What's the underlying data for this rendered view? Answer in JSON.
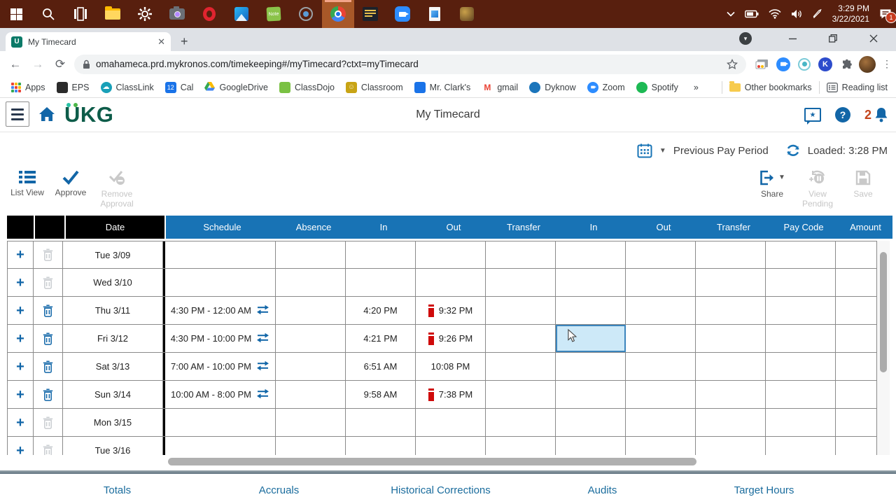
{
  "taskbar": {
    "time": "3:29 PM",
    "date": "3/22/2021",
    "badge": "1",
    "note_icon_label": "Note"
  },
  "browser": {
    "tab_title": "My Timecard",
    "favicon_letter": "U",
    "new_tab": "+",
    "close_tab": "✕",
    "url": "omahameca.prd.mykronos.com/timekeeping#/myTimecard?ctxt=myTimecard",
    "bookmarks": [
      {
        "label": "Apps",
        "icon": "apps-grid"
      },
      {
        "label": "EPS",
        "icon": "eps"
      },
      {
        "label": "ClassLink",
        "icon": "classlink"
      },
      {
        "label": "Cal",
        "icon": "cal",
        "glyph": "12"
      },
      {
        "label": "GoogleDrive",
        "icon": "gdrive"
      },
      {
        "label": "ClassDojo",
        "icon": "classdojo"
      },
      {
        "label": "Classroom",
        "icon": "classroom"
      },
      {
        "label": "Mr. Clark's",
        "icon": "mrclarks"
      },
      {
        "label": "gmail",
        "icon": "gmail",
        "glyph": "M"
      },
      {
        "label": "Dyknow",
        "icon": "dyknow"
      },
      {
        "label": "Zoom",
        "icon": "zoom"
      },
      {
        "label": "Spotify",
        "icon": "spotify"
      }
    ],
    "bookmarks_overflow": "»",
    "other_bookmarks": "Other bookmarks",
    "reading_list": "Reading list",
    "extension_k": "K"
  },
  "app": {
    "logo": "UKG",
    "title": "My Timecard",
    "help_glyph": "?",
    "notification_count": "2",
    "pay_period_label": "Previous Pay Period",
    "loaded_label": "Loaded: 3:28 PM",
    "toolbar": {
      "list_view": "List View",
      "approve": "Approve",
      "remove_approval": "Remove Approval",
      "share": "Share",
      "view_pending": "View Pending",
      "save": "Save"
    },
    "footer_tabs": [
      "Totals",
      "Accruals",
      "Historical Corrections",
      "Audits",
      "Target Hours"
    ]
  },
  "table": {
    "columns": [
      "Date",
      "Schedule",
      "Absence",
      "In",
      "Out",
      "Transfer",
      "In",
      "Out",
      "Transfer",
      "Pay Code",
      "Amount"
    ],
    "rows": [
      {
        "date": "Tue 3/09",
        "schedule": "",
        "absence": "",
        "in1": "",
        "out1": "",
        "out1_flag": false,
        "transfer1": "",
        "in2": "",
        "out2": "",
        "transfer2": "",
        "pay_code": "",
        "amount": "",
        "can_delete": false,
        "selected_cell": null
      },
      {
        "date": "Wed 3/10",
        "schedule": "",
        "absence": "",
        "in1": "",
        "out1": "",
        "out1_flag": false,
        "transfer1": "",
        "in2": "",
        "out2": "",
        "transfer2": "",
        "pay_code": "",
        "amount": "",
        "can_delete": false,
        "selected_cell": null
      },
      {
        "date": "Thu 3/11",
        "schedule": "4:30 PM - 12:00 AM",
        "absence": "",
        "in1": "4:20 PM",
        "out1": "9:32 PM",
        "out1_flag": true,
        "transfer1": "",
        "in2": "",
        "out2": "",
        "transfer2": "",
        "pay_code": "",
        "amount": "",
        "can_delete": true,
        "selected_cell": null
      },
      {
        "date": "Fri 3/12",
        "schedule": "4:30 PM - 10:00 PM",
        "absence": "",
        "in1": "4:21 PM",
        "out1": "9:26 PM",
        "out1_flag": true,
        "transfer1": "",
        "in2": "",
        "out2": "",
        "transfer2": "",
        "pay_code": "",
        "amount": "",
        "can_delete": true,
        "selected_cell": "in2"
      },
      {
        "date": "Sat 3/13",
        "schedule": "7:00 AM - 10:00 PM",
        "absence": "",
        "in1": "6:51 AM",
        "out1": "10:08 PM",
        "out1_flag": false,
        "transfer1": "",
        "in2": "",
        "out2": "",
        "transfer2": "",
        "pay_code": "",
        "amount": "",
        "can_delete": true,
        "selected_cell": null
      },
      {
        "date": "Sun 3/14",
        "schedule": "10:00 AM - 8:00 PM",
        "absence": "",
        "in1": "9:58 AM",
        "out1": "7:38 PM",
        "out1_flag": true,
        "transfer1": "",
        "in2": "",
        "out2": "",
        "transfer2": "",
        "pay_code": "",
        "amount": "",
        "can_delete": true,
        "selected_cell": null
      },
      {
        "date": "Mon 3/15",
        "schedule": "",
        "absence": "",
        "in1": "",
        "out1": "",
        "out1_flag": false,
        "transfer1": "",
        "in2": "",
        "out2": "",
        "transfer2": "",
        "pay_code": "",
        "amount": "",
        "can_delete": false,
        "selected_cell": null
      },
      {
        "date": "Tue 3/16",
        "schedule": "",
        "absence": "",
        "in1": "",
        "out1": "",
        "out1_flag": false,
        "transfer1": "",
        "in2": "",
        "out2": "",
        "transfer2": "",
        "pay_code": "",
        "amount": "",
        "can_delete": false,
        "selected_cell": null
      }
    ]
  },
  "colors": {
    "header_blue": "#1873b5",
    "icon_blue": "#1266a7",
    "flag_red": "#cf0a0a",
    "selected_cell_bg": "#cde9f8",
    "footer_link": "#1a6c9d",
    "taskbar_bg": "#581f0e"
  }
}
